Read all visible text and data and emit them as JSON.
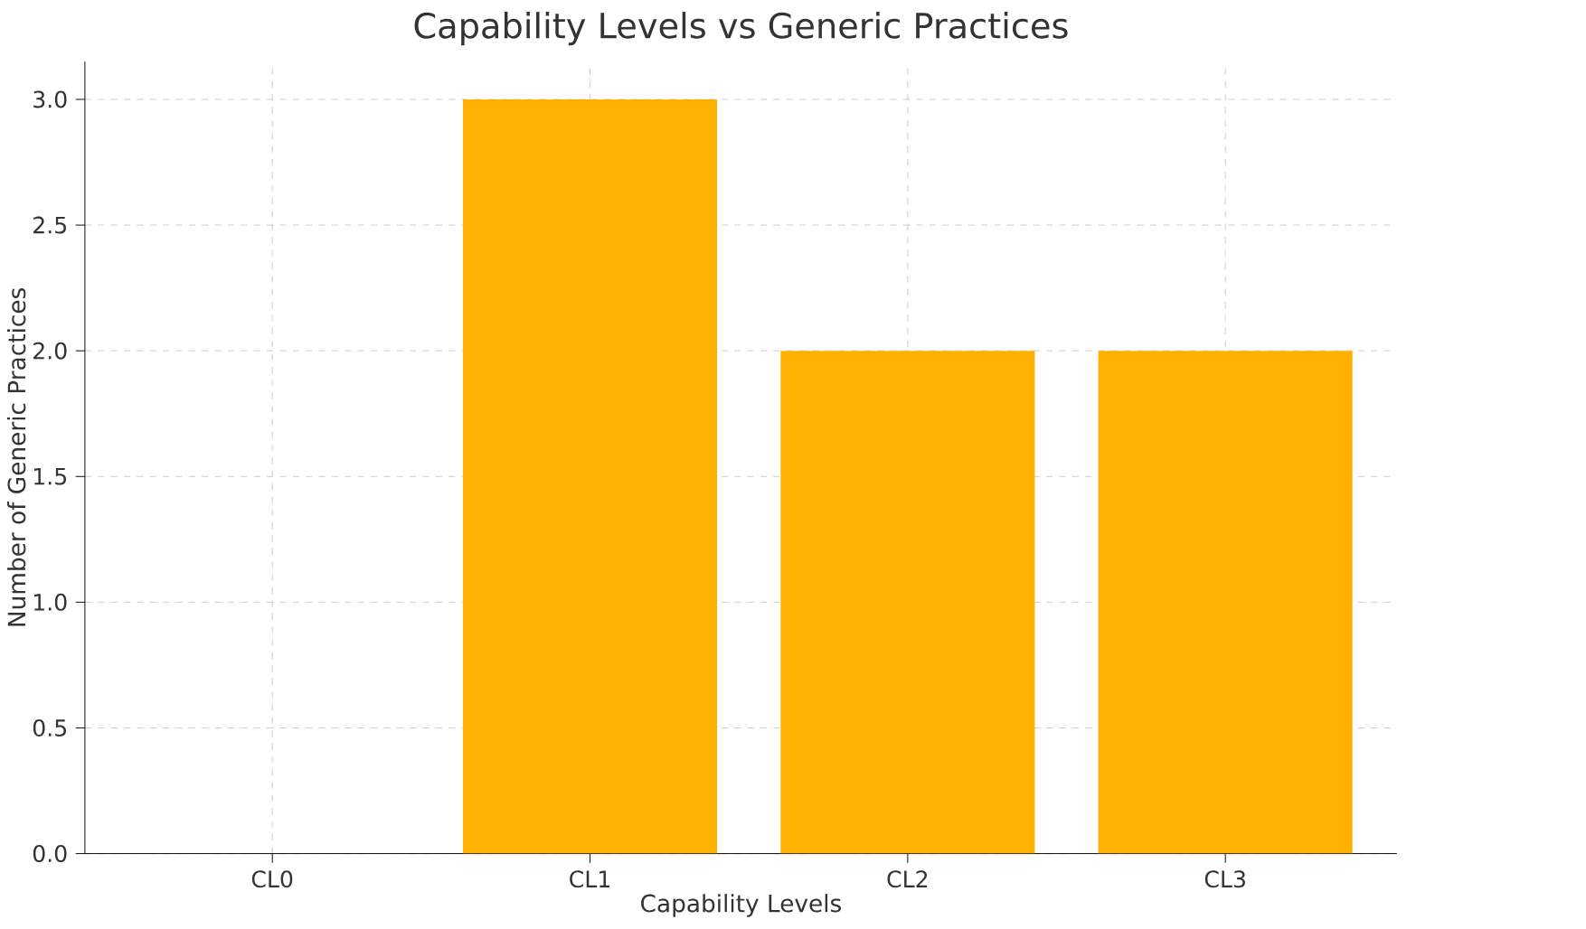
{
  "chart_data": {
    "type": "bar",
    "title": "Capability Levels vs Generic Practices",
    "xlabel": "Capability Levels",
    "ylabel": "Number of Generic Practices",
    "categories": [
      "CL0",
      "CL1",
      "CL2",
      "CL3"
    ],
    "values": [
      0,
      3,
      2,
      2
    ],
    "color": "#ffb000",
    "ylim": [
      0,
      3.15
    ],
    "yticks": [
      {
        "value": 0,
        "label": "0.0"
      },
      {
        "value": 0.5,
        "label": "0.5"
      },
      {
        "value": 1,
        "label": "1.0"
      },
      {
        "value": 1.5,
        "label": "1.5"
      },
      {
        "value": 2,
        "label": "2.0"
      },
      {
        "value": 2.5,
        "label": "2.5"
      },
      {
        "value": 3,
        "label": "3.0"
      }
    ],
    "grid": true
  }
}
